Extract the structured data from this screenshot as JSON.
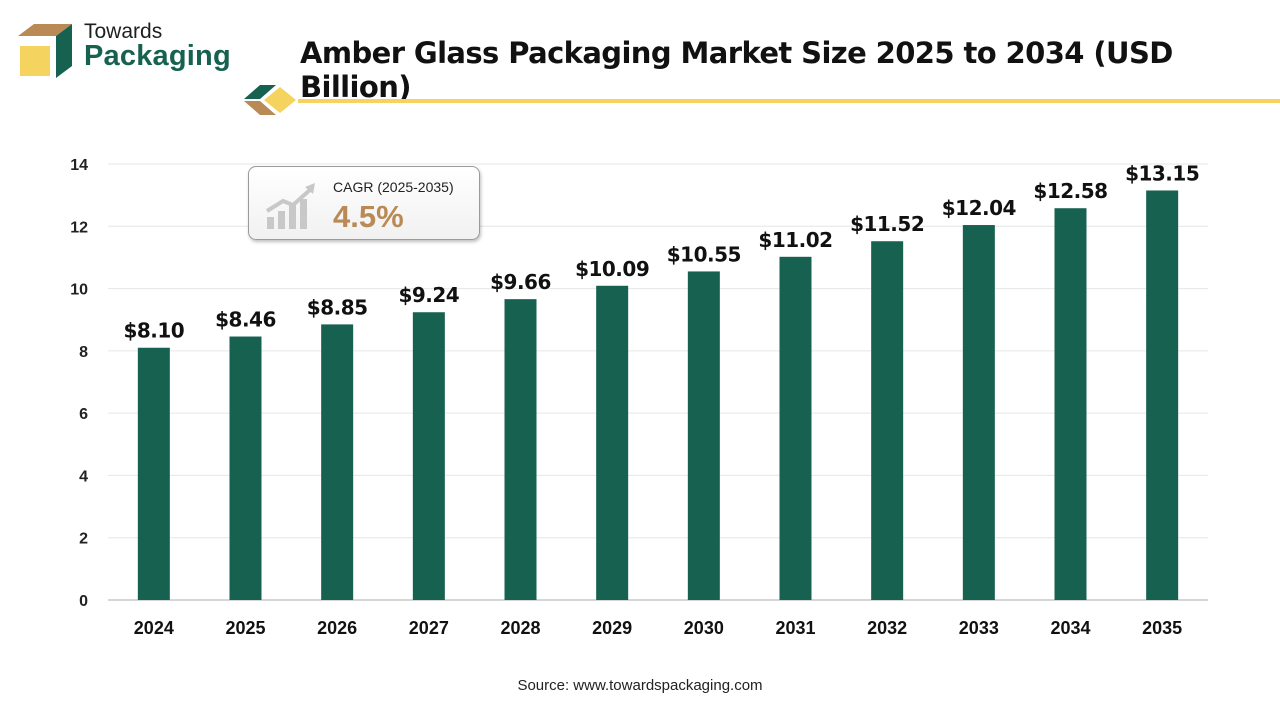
{
  "brand": {
    "line1": "Towards",
    "line2": "Packaging",
    "colors": {
      "green": "#16614f",
      "gold": "#f4d35e",
      "tan": "#b98a55"
    }
  },
  "chart_data": {
    "type": "bar",
    "title": "Amber Glass Packaging Market Size 2025 to 2034 (USD Billion)",
    "categories": [
      "2024",
      "2025",
      "2026",
      "2027",
      "2028",
      "2029",
      "2030",
      "2031",
      "2032",
      "2033",
      "2034",
      "2035"
    ],
    "values": [
      8.1,
      8.46,
      8.85,
      9.24,
      9.66,
      10.09,
      10.55,
      11.02,
      11.52,
      12.04,
      12.58,
      13.15
    ],
    "value_labels": [
      "$8.10",
      "$8.46",
      "$8.85",
      "$9.24",
      "$9.66",
      "$10.09",
      "$10.55",
      "$11.02",
      "$11.52",
      "$12.04",
      "$12.58",
      "$13.15"
    ],
    "yticks": [
      "0",
      "2",
      "4",
      "6",
      "8",
      "10",
      "12",
      "14"
    ],
    "ylim": [
      0,
      14
    ],
    "grid": true,
    "bar_color": "#16614f"
  },
  "cagr": {
    "label": "CAGR (2025-2035)",
    "value": "4.5%"
  },
  "source": "Source: www.towardspackaging.com"
}
